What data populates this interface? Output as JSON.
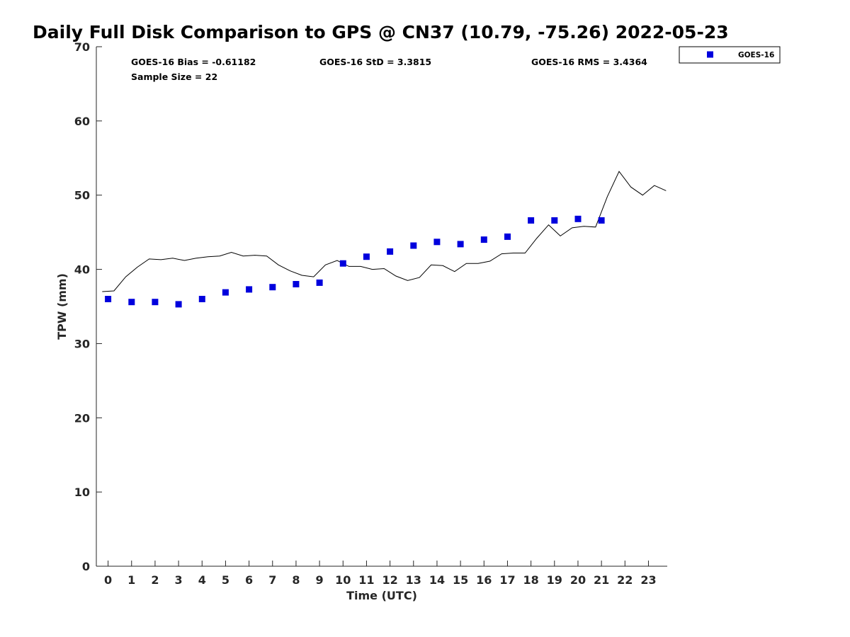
{
  "chart_data": {
    "type": "scatter",
    "title": "Daily Full Disk Comparison to GPS @ CN37 (10.79, -75.26) 2022-05-23",
    "xlabel": "Time (UTC)",
    "ylabel": "TPW (mm)",
    "xlim": [
      -0.5,
      23.8
    ],
    "ylim": [
      0,
      70
    ],
    "x_ticks": [
      "0",
      "1",
      "2",
      "3",
      "4",
      "5",
      "6",
      "7",
      "8",
      "9",
      "10",
      "11",
      "12",
      "13",
      "14",
      "15",
      "16",
      "17",
      "18",
      "19",
      "20",
      "21",
      "22",
      "23"
    ],
    "y_ticks": [
      "0",
      "10",
      "20",
      "30",
      "40",
      "50",
      "60",
      "70"
    ],
    "grid": false,
    "legend_position": "top-right, outside plot",
    "stats": {
      "bias": "GOES-16 Bias = -0.61182",
      "std": "GOES-16 StD = 3.3815",
      "rms": "GOES-16 RMS = 3.4364",
      "sample_size": "Sample Size = 22"
    },
    "series": [
      {
        "name": "GOES-16",
        "kind": "scatter",
        "marker": "square",
        "color": "#0000dd",
        "x": [
          0,
          1,
          2,
          3,
          4,
          5,
          6,
          7,
          8,
          9,
          10,
          11,
          12,
          13,
          14,
          15,
          16,
          17,
          18,
          19,
          20,
          21
        ],
        "y": [
          36.0,
          35.6,
          35.6,
          35.3,
          36.0,
          36.9,
          37.3,
          37.6,
          38.0,
          38.2,
          40.8,
          41.7,
          42.4,
          43.2,
          43.7,
          43.4,
          44.0,
          44.4,
          46.6,
          46.6,
          46.8,
          46.6
        ]
      },
      {
        "kind": "line",
        "color": "#000000",
        "x": [
          -0.25,
          0.25,
          0.75,
          1.25,
          1.75,
          2.25,
          2.75,
          3.25,
          3.75,
          4.25,
          4.75,
          5.25,
          5.75,
          6.25,
          6.75,
          7.25,
          7.75,
          8.25,
          8.75,
          9.25,
          9.75,
          10.25,
          10.75,
          11.25,
          11.75,
          12.25,
          12.75,
          13.25,
          13.75,
          14.25,
          14.75,
          15.25,
          15.75,
          16.25,
          16.75,
          17.25,
          17.75,
          18.25,
          18.75,
          19.25,
          19.75,
          20.25,
          20.75,
          21.25,
          21.75,
          22.25,
          22.75,
          23.25,
          23.75
        ],
        "y": [
          37.0,
          37.1,
          39.0,
          40.3,
          41.4,
          41.3,
          41.5,
          41.2,
          41.5,
          41.7,
          41.8,
          42.3,
          41.8,
          41.9,
          41.8,
          40.6,
          39.8,
          39.2,
          39.0,
          40.6,
          41.2,
          40.4,
          40.4,
          40.0,
          40.1,
          39.1,
          38.5,
          38.9,
          40.6,
          40.5,
          39.7,
          40.8,
          40.8,
          41.1,
          42.1,
          42.2,
          42.2,
          44.2,
          46.0,
          44.5,
          45.6,
          45.8,
          45.7,
          49.8,
          53.2,
          51.1,
          50.0,
          51.3,
          50.6
        ]
      }
    ]
  }
}
